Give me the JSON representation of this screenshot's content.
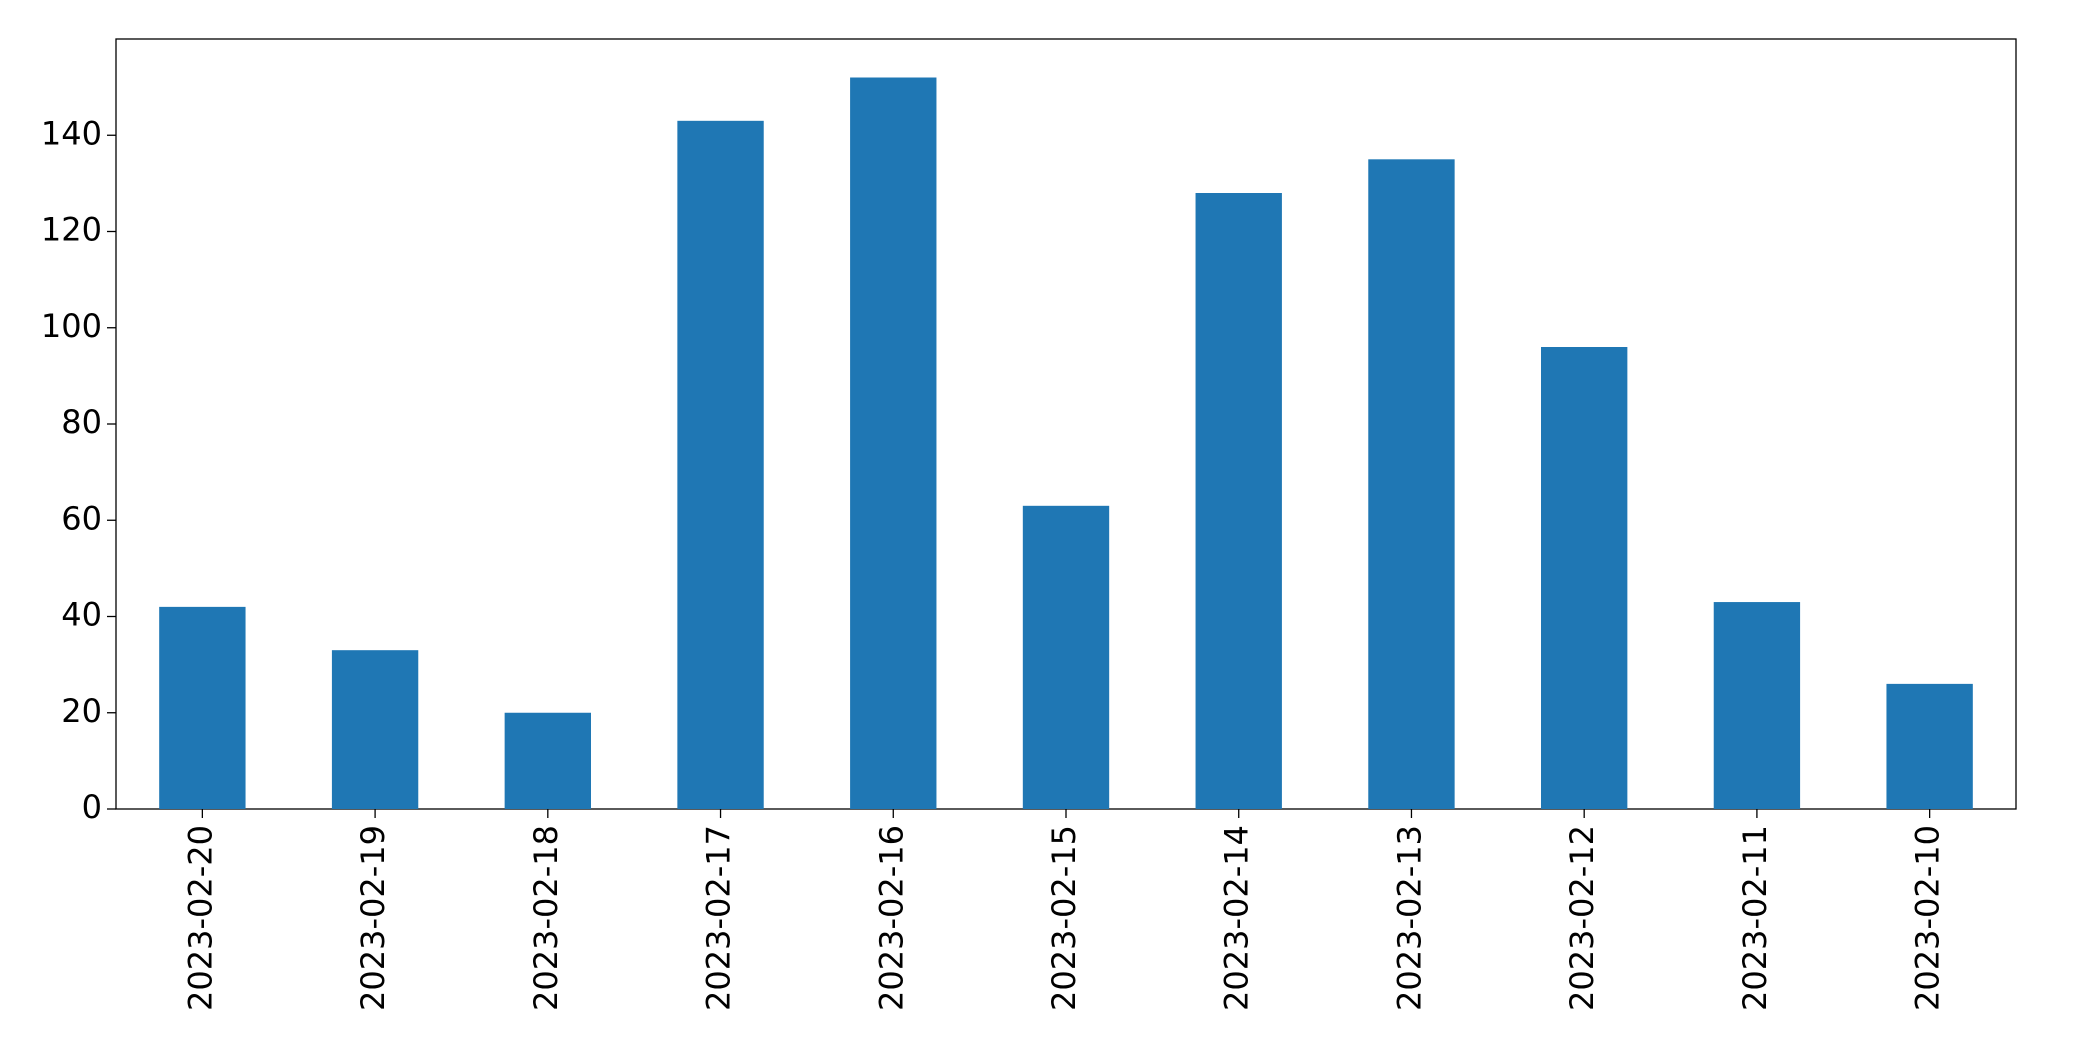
{
  "chart_data": {
    "type": "bar",
    "categories": [
      "2023-02-20",
      "2023-02-19",
      "2023-02-18",
      "2023-02-17",
      "2023-02-16",
      "2023-02-15",
      "2023-02-14",
      "2023-02-13",
      "2023-02-12",
      "2023-02-11",
      "2023-02-10"
    ],
    "values": [
      42,
      33,
      20,
      143,
      152,
      63,
      128,
      135,
      96,
      43,
      26
    ],
    "color": "#1f77b4",
    "ylim": [
      0,
      160
    ],
    "yticks": [
      0,
      20,
      40,
      60,
      80,
      100,
      120,
      140
    ],
    "grid": false
  }
}
